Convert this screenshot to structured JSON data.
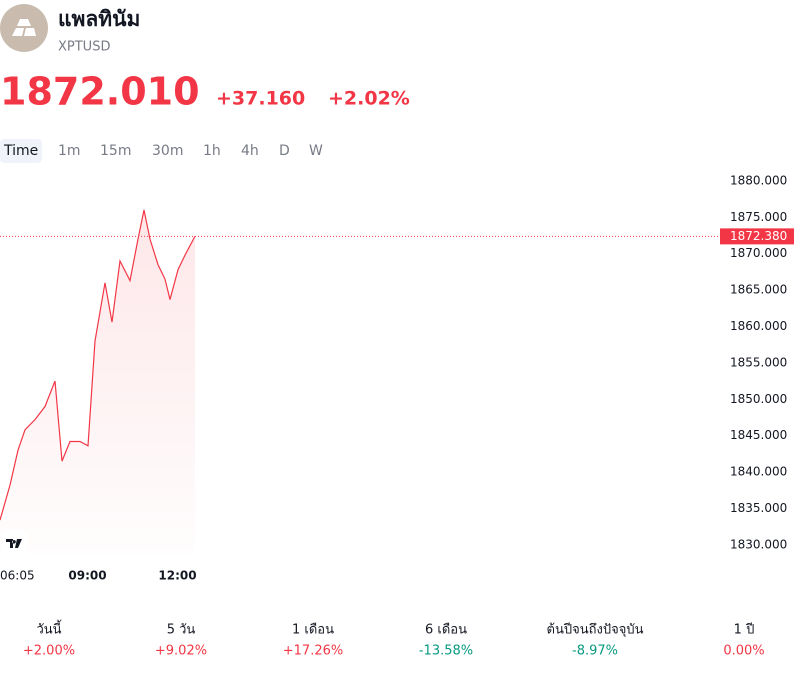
{
  "header": {
    "title": "แพลทินัม",
    "symbol": "XPTUSD",
    "price": "1872.010",
    "change": "+37.160",
    "change_pct": "+2.02%"
  },
  "timeframes": [
    "Time",
    "1m",
    "15m",
    "30m",
    "1h",
    "4h",
    "D",
    "W"
  ],
  "chart_data": {
    "type": "line",
    "color": "#f23645",
    "x": [
      365,
      385,
      401,
      415,
      435,
      455,
      475,
      489,
      505,
      525,
      541,
      555,
      575,
      589,
      605,
      625,
      641,
      653,
      665,
      681,
      695,
      705,
      721,
      735,
      755
    ],
    "values": [
      1833.4,
      1838.2,
      1843.0,
      1845.8,
      1847.2,
      1849.0,
      1852.5,
      1841.5,
      1844.2,
      1844.2,
      1843.6,
      1858.0,
      1866.0,
      1860.6,
      1869.0,
      1866.3,
      1872.0,
      1876.0,
      1872.0,
      1868.5,
      1866.5,
      1863.7,
      1867.8,
      1869.8,
      1872.4
    ],
    "xlim": [
      365,
      1795
    ],
    "xticks": [
      {
        "value": 365,
        "label": "06:05"
      },
      {
        "value": 540,
        "label": "09:00"
      },
      {
        "value": 720,
        "label": "12:00"
      }
    ],
    "ylim": [
      1828.6,
      1881.5
    ],
    "yticks": [
      {
        "value": 1830,
        "label": "1830.000"
      },
      {
        "value": 1835,
        "label": "1835.000"
      },
      {
        "value": 1840,
        "label": "1840.000"
      },
      {
        "value": 1845,
        "label": "1845.000"
      },
      {
        "value": 1850,
        "label": "1850.000"
      },
      {
        "value": 1855,
        "label": "1855.000"
      },
      {
        "value": 1860,
        "label": "1860.000"
      },
      {
        "value": 1865,
        "label": "1865.000"
      },
      {
        "value": 1870,
        "label": "1870.000"
      },
      {
        "value": 1875,
        "label": "1875.000"
      },
      {
        "value": 1880,
        "label": "1880.000"
      }
    ],
    "last_price": {
      "value": 1872.38,
      "label": "1872.380"
    }
  },
  "performance": [
    {
      "label": "วันนี้",
      "value": "+2.00%"
    },
    {
      "label": "5 วัน",
      "value": "+9.02%"
    },
    {
      "label": "1 เดือน",
      "value": "+17.26%"
    },
    {
      "label": "6 เดือน",
      "value": "-13.58%"
    },
    {
      "label": "ต้นปีจนถึงปัจจุบัน",
      "value": "-8.97%"
    },
    {
      "label": "1 ปี",
      "value": "0.00%"
    }
  ]
}
